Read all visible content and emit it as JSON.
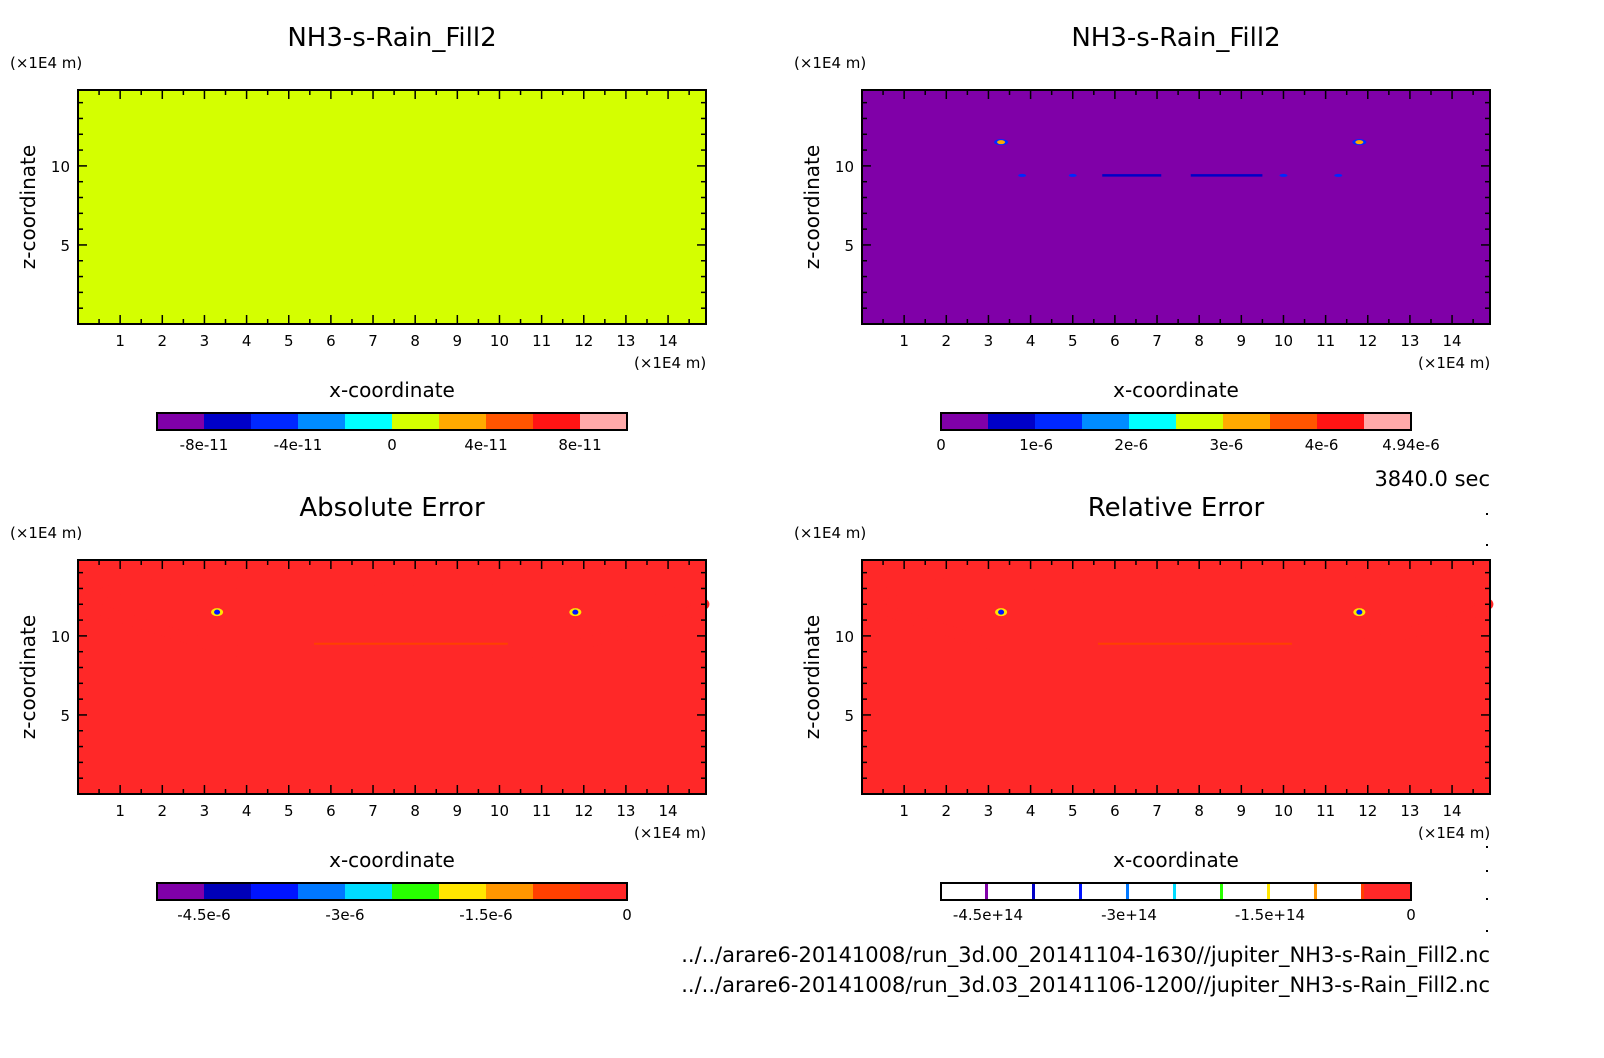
{
  "time_label": "3840.0 sec",
  "files": [
    "../../arare6-20141008/run_3d.00_20141104-1630//jupiter_NH3-s-Rain_Fill2.nc",
    "../../arare6-20141008/run_3d.03_20141106-1200//jupiter_NH3-s-Rain_Fill2.nc"
  ],
  "chart_data": [
    {
      "type": "heatmap",
      "title": "NH3-s-Rain_Fill2",
      "xlabel": "x-coordinate",
      "ylabel": "z-coordinate",
      "x_unit": "(×1E4 m)",
      "y_unit": "(×1E4 m)",
      "xlim": [
        0,
        14.9
      ],
      "ylim": [
        0,
        14.8
      ],
      "xticks": [
        "1",
        "2",
        "3",
        "4",
        "5",
        "6",
        "7",
        "8",
        "9",
        "10",
        "11",
        "12",
        "13",
        "14"
      ],
      "yticks": [
        "5",
        "10"
      ],
      "field": "uniform 0 everywhere",
      "colorbar": {
        "range": [
          -1e-10,
          1e-10
        ],
        "colors": [
          "#8000a8",
          "#0000c8",
          "#0028ff",
          "#008cff",
          "#00ffff",
          "#d4ff00",
          "#ffaa00",
          "#ff5500",
          "#ff1414",
          "#ffaaaa"
        ],
        "ticks": [
          {
            "value": -8e-11,
            "label": "-8e-11"
          },
          {
            "value": -4e-11,
            "label": "-4e-11"
          },
          {
            "value": 0,
            "label": "0"
          },
          {
            "value": 4e-11,
            "label": "4e-11"
          },
          {
            "value": 8e-11,
            "label": "8e-11"
          }
        ],
        "style": "filled"
      }
    },
    {
      "type": "heatmap",
      "title": "NH3-s-Rain_Fill2",
      "xlabel": "x-coordinate",
      "ylabel": "z-coordinate",
      "x_unit": "(×1E4 m)",
      "y_unit": "(×1E4 m)",
      "xlim": [
        0,
        14.9
      ],
      "ylim": [
        0,
        14.8
      ],
      "xticks": [
        "1",
        "2",
        "3",
        "4",
        "5",
        "6",
        "7",
        "8",
        "9",
        "10",
        "11",
        "12",
        "13",
        "14"
      ],
      "yticks": [
        "5",
        "10"
      ],
      "field": "near 0 background; small maxima near (3.3,11.5) and (11.8,11.5); thin low-value streaks near z=9.4",
      "colorbar": {
        "range": [
          0,
          4.94e-06
        ],
        "colors": [
          "#8000a8",
          "#0000c8",
          "#0028ff",
          "#008cff",
          "#00ffff",
          "#d4ff00",
          "#ffaa00",
          "#ff5500",
          "#ff1414",
          "#ffaaaa"
        ],
        "ticks": [
          {
            "value": 0,
            "label": "0"
          },
          {
            "value": 1e-06,
            "label": "1e-6"
          },
          {
            "value": 2e-06,
            "label": "2e-6"
          },
          {
            "value": 3e-06,
            "label": "3e-6"
          },
          {
            "value": 4e-06,
            "label": "4e-6"
          },
          {
            "value": 4.94e-06,
            "label": "4.94e-6"
          }
        ],
        "style": "filled"
      }
    },
    {
      "type": "heatmap",
      "title": "Absolute Error",
      "xlabel": "x-coordinate",
      "ylabel": "z-coordinate",
      "x_unit": "(×1E4 m)",
      "y_unit": "(×1E4 m)",
      "xlim": [
        0,
        14.9
      ],
      "ylim": [
        0,
        14.8
      ],
      "xticks": [
        "1",
        "2",
        "3",
        "4",
        "5",
        "6",
        "7",
        "8",
        "9",
        "10",
        "11",
        "12",
        "13",
        "14"
      ],
      "yticks": [
        "5",
        "10"
      ],
      "field": "0 background; slightly negative ring between z≈8.5 and 13.5; minima near (3.3,11.5) and (11.8,11.5)",
      "colorbar": {
        "range": [
          -5e-06,
          0
        ],
        "colors": [
          "#8000a8",
          "#0000b8",
          "#0014ff",
          "#0078ff",
          "#00dcff",
          "#28ff00",
          "#ffe600",
          "#ff9600",
          "#ff4000",
          "#ff2828"
        ],
        "ticks": [
          {
            "value": -4.5e-06,
            "label": "-4.5e-6"
          },
          {
            "value": -3e-06,
            "label": "-3e-6"
          },
          {
            "value": -1.5e-06,
            "label": "-1.5e-6"
          },
          {
            "value": 0,
            "label": "0"
          }
        ],
        "style": "filled"
      }
    },
    {
      "type": "heatmap",
      "title": "Relative Error",
      "xlabel": "x-coordinate",
      "ylabel": "z-coordinate",
      "x_unit": "(×1E4 m)",
      "y_unit": "(×1E4 m)",
      "xlim": [
        0,
        14.9
      ],
      "ylim": [
        0,
        14.8
      ],
      "xticks": [
        "1",
        "2",
        "3",
        "4",
        "5",
        "6",
        "7",
        "8",
        "9",
        "10",
        "11",
        "12",
        "13",
        "14"
      ],
      "yticks": [
        "5",
        "10"
      ],
      "field": "0 background; slightly negative ring between z≈8.5 and 13.5; minima near (3.3,11.5) and (11.8,11.5)",
      "colorbar": {
        "range": [
          -500000000000000.0,
          0
        ],
        "colors": [
          "#8000a8",
          "#0000c8",
          "#0014ff",
          "#0078ff",
          "#00dcff",
          "#28ff00",
          "#ffe600",
          "#ff9600",
          "#ff4000",
          "#ff2828"
        ],
        "ticks": [
          {
            "value": -450000000000000.0,
            "label": "-4.5e+14"
          },
          {
            "value": -300000000000000.0,
            "label": "-3e+14"
          },
          {
            "value": -150000000000000.0,
            "label": "-1.5e+14"
          },
          {
            "value": 0,
            "label": "0"
          }
        ],
        "style": "lines"
      }
    }
  ]
}
